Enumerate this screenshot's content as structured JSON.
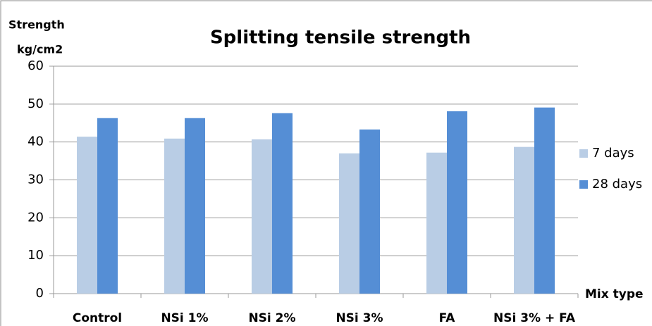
{
  "chart_data": {
    "type": "bar",
    "title": "Splitting tensile strength",
    "ylabel_lines": [
      "Strength",
      "kg/cm2"
    ],
    "xlabel": "Mix type",
    "categories": [
      "Control",
      "NSi 1%",
      "NSi 2%",
      "NSi 3%",
      "FA",
      "NSi 3% + FA"
    ],
    "series": [
      {
        "name": "7 days",
        "color": "#b9cde5",
        "values": [
          41.4,
          40.9,
          40.7,
          37.0,
          37.2,
          38.7
        ]
      },
      {
        "name": "28 days",
        "color": "#558ed5",
        "values": [
          46.3,
          46.3,
          47.6,
          43.3,
          48.1,
          49.1
        ]
      }
    ],
    "ylim": [
      0,
      60
    ],
    "yticks": [
      0,
      10,
      20,
      30,
      40,
      50,
      60
    ],
    "grid": true,
    "legend": "right"
  }
}
